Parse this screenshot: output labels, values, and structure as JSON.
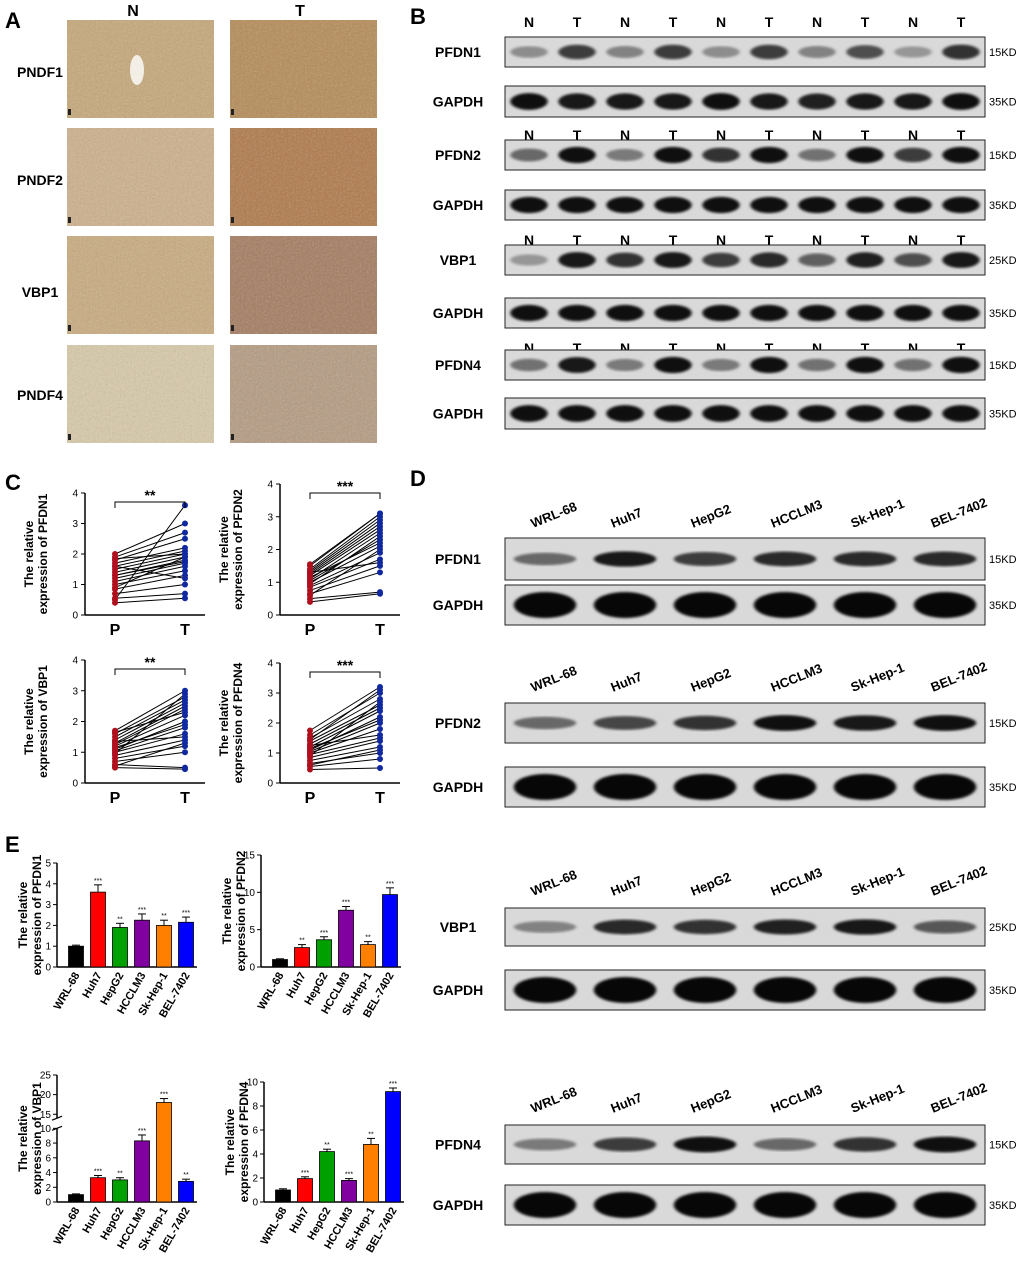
{
  "panels": {
    "A": "A",
    "B": "B",
    "C": "C",
    "D": "D",
    "E": "E"
  },
  "panelA": {
    "columns": [
      "N",
      "T"
    ],
    "rows": [
      "PNDF1",
      "PNDF2",
      "VBP1",
      "PNDF4"
    ]
  },
  "panelB": {
    "lane_labels": [
      "N",
      "T",
      "N",
      "T",
      "N",
      "T",
      "N",
      "T",
      "N",
      "T"
    ],
    "blots": [
      {
        "name": "PFDN1",
        "kd": "15KD",
        "band": [
          0.25,
          0.7,
          0.3,
          0.7,
          0.25,
          0.7,
          0.3,
          0.6,
          0.2,
          0.75
        ]
      },
      {
        "name": "GAPDH",
        "kd": "35KD",
        "band": [
          0.95,
          0.9,
          0.9,
          0.9,
          0.95,
          0.9,
          0.85,
          0.9,
          0.9,
          0.95
        ]
      },
      {
        "name": "PFDN2",
        "kd": "15KD",
        "band": [
          0.45,
          0.95,
          0.35,
          0.95,
          0.75,
          0.95,
          0.4,
          0.95,
          0.7,
          0.95
        ]
      },
      {
        "name": "GAPDH",
        "kd": "35KD",
        "band": [
          0.95,
          0.95,
          0.95,
          0.95,
          0.95,
          0.95,
          0.95,
          0.95,
          0.95,
          0.95
        ]
      },
      {
        "name": "VBP1",
        "kd": "25KD",
        "band": [
          0.2,
          0.9,
          0.75,
          0.9,
          0.7,
          0.8,
          0.5,
          0.85,
          0.6,
          0.9
        ]
      },
      {
        "name": "GAPDH",
        "kd": "35KD",
        "band": [
          0.95,
          0.95,
          0.95,
          0.95,
          0.95,
          0.95,
          0.95,
          0.95,
          0.95,
          0.95
        ]
      },
      {
        "name": "PFDN4",
        "kd": "15KD",
        "band": [
          0.4,
          0.9,
          0.35,
          0.95,
          0.35,
          0.95,
          0.4,
          0.95,
          0.4,
          0.95
        ]
      },
      {
        "name": "GAPDH",
        "kd": "35KD",
        "band": [
          0.95,
          0.95,
          0.95,
          0.95,
          0.95,
          0.95,
          0.95,
          0.95,
          0.95,
          0.95
        ]
      }
    ]
  },
  "panelD": {
    "cell_lines": [
      "WRL-68",
      "Huh7",
      "HepG2",
      "HCCLM3",
      "Sk-Hep-1",
      "BEL-7402"
    ],
    "groups": [
      {
        "target": "PFDN1",
        "kd": "15KD",
        "band": [
          0.45,
          0.9,
          0.7,
          0.8,
          0.8,
          0.8
        ],
        "gapdh": "GAPDH",
        "gkd": "35KD"
      },
      {
        "target": "PFDN2",
        "kd": "15KD",
        "band": [
          0.45,
          0.65,
          0.75,
          0.95,
          0.9,
          0.95
        ],
        "gapdh": "GAPDH",
        "gkd": "35KD"
      },
      {
        "target": "VBP1",
        "kd": "25KD",
        "band": [
          0.3,
          0.8,
          0.75,
          0.85,
          0.9,
          0.55
        ],
        "gapdh": "GAPDH",
        "gkd": "35KD"
      },
      {
        "target": "PFDN4",
        "kd": "15KD",
        "band": [
          0.35,
          0.7,
          0.95,
          0.45,
          0.75,
          0.95
        ],
        "gapdh": "GAPDH",
        "gkd": "35KD"
      }
    ]
  },
  "chart_data": [
    {
      "type": "line",
      "panel": "C",
      "ylabel": "The relative expression of PFDN1",
      "categories": [
        "P",
        "T"
      ],
      "ylim": [
        0,
        4
      ],
      "yticks": [
        0,
        1,
        2,
        3,
        4
      ],
      "significance": "**",
      "P": [
        0.4,
        0.55,
        0.7,
        0.85,
        1.0,
        1.1,
        1.2,
        1.3,
        1.4,
        1.5,
        1.6,
        1.7,
        1.8,
        1.9,
        2.0,
        0.5,
        0.9,
        1.3,
        1.6,
        1.85
      ],
      "T": [
        0.55,
        0.7,
        1.0,
        1.3,
        1.45,
        1.6,
        1.7,
        1.8,
        1.9,
        2.0,
        2.1,
        2.2,
        2.5,
        2.7,
        3.0,
        3.6,
        1.9,
        1.75,
        1.2,
        2.0
      ]
    },
    {
      "type": "line",
      "panel": "C",
      "ylabel": "The relative expression of PFDN2",
      "categories": [
        "P",
        "T"
      ],
      "ylim": [
        0,
        4
      ],
      "yticks": [
        0,
        1,
        2,
        3,
        4
      ],
      "significance": "***",
      "P": [
        0.4,
        0.5,
        0.65,
        0.75,
        0.85,
        0.9,
        1.0,
        1.05,
        1.1,
        1.2,
        1.25,
        1.3,
        1.35,
        1.4,
        1.5,
        0.6,
        0.95,
        1.15,
        1.3,
        1.55
      ],
      "T": [
        0.65,
        0.7,
        1.3,
        1.5,
        1.7,
        1.9,
        2.1,
        2.3,
        2.5,
        2.6,
        2.7,
        2.8,
        2.9,
        3.0,
        3.1,
        2.0,
        2.4,
        2.2,
        1.6,
        3.1
      ]
    },
    {
      "type": "line",
      "panel": "C",
      "ylabel": "The relative expression of VBP1",
      "categories": [
        "P",
        "T"
      ],
      "ylim": [
        0,
        4
      ],
      "yticks": [
        0,
        1,
        2,
        3,
        4
      ],
      "significance": "**",
      "P": [
        0.5,
        0.6,
        0.7,
        0.8,
        0.9,
        1.0,
        1.05,
        1.1,
        1.2,
        1.25,
        1.3,
        1.4,
        1.5,
        1.6,
        1.7,
        0.55,
        0.95,
        1.15,
        1.35,
        1.65
      ],
      "T": [
        0.45,
        0.5,
        1.0,
        1.2,
        1.4,
        1.6,
        1.8,
        2.0,
        2.2,
        2.4,
        2.5,
        2.6,
        2.7,
        2.8,
        3.0,
        1.3,
        2.9,
        1.9,
        1.5,
        2.3
      ]
    },
    {
      "type": "line",
      "panel": "C",
      "ylabel": "The relative expression of PFDN4",
      "categories": [
        "P",
        "T"
      ],
      "ylim": [
        0,
        4
      ],
      "yticks": [
        0,
        1,
        2,
        3,
        4
      ],
      "significance": "***",
      "P": [
        0.45,
        0.55,
        0.65,
        0.75,
        0.85,
        0.95,
        1.0,
        1.05,
        1.1,
        1.2,
        1.3,
        1.4,
        1.5,
        1.6,
        1.75,
        0.6,
        0.9,
        1.25,
        1.45,
        1.15
      ],
      "T": [
        0.5,
        0.8,
        1.0,
        1.2,
        1.4,
        1.5,
        1.8,
        2.0,
        2.2,
        2.4,
        2.5,
        2.6,
        2.8,
        3.0,
        3.2,
        1.1,
        2.7,
        1.6,
        3.1,
        2.1
      ]
    },
    {
      "type": "bar",
      "panel": "E",
      "ylabel": "The relative expression of PFDN1",
      "categories": [
        "WRL-68",
        "Huh7",
        "HepG2",
        "HCCLM3",
        "Sk-Hep-1",
        "BEL-7402"
      ],
      "values": [
        1.0,
        3.6,
        1.9,
        2.25,
        2.0,
        2.15
      ],
      "errors": [
        0.05,
        0.35,
        0.2,
        0.3,
        0.25,
        0.25
      ],
      "sig": [
        "",
        "***",
        "**",
        "***",
        "**",
        "***"
      ],
      "ylim": [
        0,
        5
      ],
      "yticks": [
        0,
        1,
        2,
        3,
        4,
        5
      ],
      "colors": [
        "#000000",
        "#ff0000",
        "#00a000",
        "#8000a0",
        "#ff8000",
        "#0000ff"
      ]
    },
    {
      "type": "bar",
      "panel": "E",
      "ylabel": "The relative expression of PFDN2",
      "categories": [
        "WRL-68",
        "Huh7",
        "HepG2",
        "HCCLM3",
        "Sk-Hep-1",
        "BEL-7402"
      ],
      "values": [
        1.0,
        2.6,
        3.65,
        7.6,
        3.0,
        9.7
      ],
      "errors": [
        0.1,
        0.4,
        0.4,
        0.5,
        0.4,
        0.9
      ],
      "sig": [
        "",
        "**",
        "***",
        "***",
        "**",
        "***"
      ],
      "ylim": [
        0,
        15
      ],
      "yticks": [
        0,
        5,
        10,
        15
      ],
      "colors": [
        "#000000",
        "#ff0000",
        "#00a000",
        "#8000a0",
        "#ff8000",
        "#0000ff"
      ]
    },
    {
      "type": "bar",
      "panel": "E",
      "ylabel": "The relative expression of VBP1",
      "categories": [
        "WRL-68",
        "Huh7",
        "HepG2",
        "HCCLM3",
        "Sk-Hep-1",
        "BEL-7402"
      ],
      "values": [
        1.0,
        3.3,
        3.0,
        8.3,
        18.0,
        2.8
      ],
      "errors": [
        0.1,
        0.3,
        0.3,
        0.8,
        1.0,
        0.3
      ],
      "sig": [
        "",
        "***",
        "**",
        "***",
        "***",
        "**"
      ],
      "ylim": [
        0,
        25
      ],
      "yticks_low": [
        0,
        2,
        4,
        6,
        8,
        10
      ],
      "yticks_high": [
        15,
        20,
        25
      ],
      "break_at": [
        10,
        14
      ],
      "colors": [
        "#000000",
        "#ff0000",
        "#00a000",
        "#8000a0",
        "#ff8000",
        "#0000ff"
      ]
    },
    {
      "type": "bar",
      "panel": "E",
      "ylabel": "The relative expression of PFDN4",
      "categories": [
        "WRL-68",
        "Huh7",
        "HepG2",
        "HCCLM3",
        "Sk-Hep-1",
        "BEL-7402"
      ],
      "values": [
        1.0,
        1.95,
        4.2,
        1.8,
        4.8,
        9.2
      ],
      "errors": [
        0.1,
        0.15,
        0.2,
        0.15,
        0.5,
        0.3
      ],
      "sig": [
        "",
        "***",
        "**",
        "***",
        "**",
        "***"
      ],
      "ylim": [
        0,
        10
      ],
      "yticks": [
        0,
        2,
        4,
        6,
        8,
        10
      ],
      "colors": [
        "#000000",
        "#ff0000",
        "#00a000",
        "#8000a0",
        "#ff8000",
        "#0000ff"
      ]
    }
  ]
}
